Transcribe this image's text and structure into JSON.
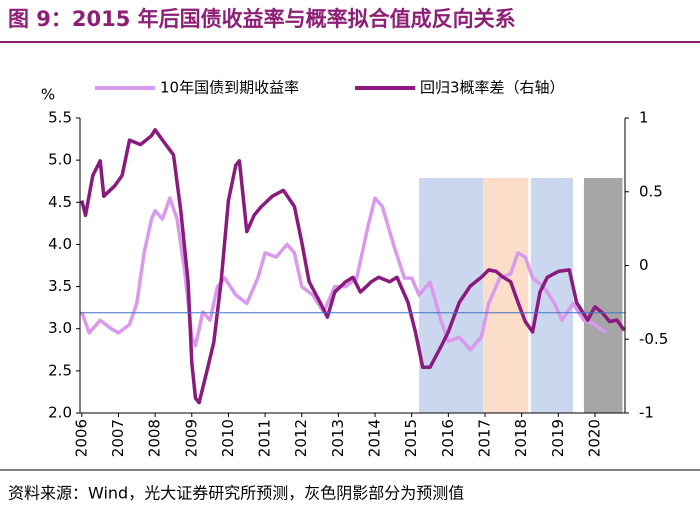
{
  "chart_data": {
    "type": "line",
    "title": "图 9：2015 年后国债收益率与概率拟合值成反向关系",
    "ylabel": "%",
    "source": "资料来源：Wind，光大证券研究所预测，灰色阴影部分为预测值",
    "xlim": [
      2005.95,
      2020.82
    ],
    "xticks": [
      2006,
      2007,
      2008,
      2009,
      2010,
      2011,
      2012,
      2013,
      2014,
      2015,
      2016,
      2017,
      2018,
      2019,
      2020
    ],
    "ylim": [
      2.0,
      5.5
    ],
    "yticks": [
      {
        "value": 2.0,
        "label": "2.0"
      },
      2.5,
      {
        "value": 3.0,
        "label": "3.0"
      },
      3.5,
      {
        "value": 4.0,
        "label": "4.0"
      },
      4.5,
      {
        "value": 5.0,
        "label": "5.0"
      },
      5.5
    ],
    "y2lim": [
      -1,
      1
    ],
    "y2ticks": [
      -1,
      -0.5,
      0,
      0.5,
      1
    ],
    "shaded_regions": [
      {
        "start": 2015.2,
        "end": 2016.95,
        "color": "#CBD7EE"
      },
      {
        "start": 2016.95,
        "end": 2018.18,
        "color": "#FBDDC9"
      },
      {
        "start": 2018.25,
        "end": 2019.4,
        "color": "#CBD7EE"
      },
      {
        "start": 2019.7,
        "end": 2020.75,
        "color": "#A6A6A6"
      }
    ],
    "reference_line": {
      "value": 3.19,
      "color": "#4472C4"
    },
    "series": [
      {
        "name": "10年国债到期收益率",
        "color": "#D999EC",
        "x": [
          2006.0,
          2006.2,
          2006.5,
          2006.8,
          2007.0,
          2007.3,
          2007.5,
          2007.7,
          2007.9,
          2008.0,
          2008.2,
          2008.4,
          2008.6,
          2008.8,
          2009.0,
          2009.1,
          2009.3,
          2009.5,
          2009.7,
          2009.9,
          2010.2,
          2010.5,
          2010.8,
          2011.0,
          2011.3,
          2011.6,
          2011.8,
          2012.0,
          2012.3,
          2012.6,
          2012.9,
          2013.2,
          2013.5,
          2013.8,
          2014.0,
          2014.2,
          2014.5,
          2014.8,
          2015.0,
          2015.2,
          2015.5,
          2015.8,
          2016.0,
          2016.3,
          2016.6,
          2016.9,
          2017.1,
          2017.4,
          2017.7,
          2017.9,
          2018.1,
          2018.3,
          2018.6,
          2018.9,
          2019.1,
          2019.4,
          2019.7,
          2020.0,
          2020.3
        ],
        "values": [
          3.2,
          2.95,
          3.1,
          3.0,
          2.95,
          3.05,
          3.3,
          3.9,
          4.3,
          4.4,
          4.3,
          4.55,
          4.3,
          3.7,
          2.9,
          2.8,
          3.2,
          3.1,
          3.5,
          3.6,
          3.4,
          3.3,
          3.6,
          3.9,
          3.85,
          4.0,
          3.9,
          3.5,
          3.4,
          3.2,
          3.5,
          3.5,
          3.6,
          4.2,
          4.55,
          4.45,
          4.0,
          3.6,
          3.6,
          3.4,
          3.55,
          3.1,
          2.85,
          2.9,
          2.75,
          2.9,
          3.3,
          3.6,
          3.65,
          3.9,
          3.85,
          3.6,
          3.5,
          3.3,
          3.1,
          3.3,
          3.1,
          3.05,
          2.95
        ]
      },
      {
        "name": "回归3概率差（右轴）",
        "color": "#8B1A7E",
        "axis": "y2",
        "x": [
          2006.0,
          2006.1,
          2006.3,
          2006.5,
          2006.6,
          2006.9,
          2007.1,
          2007.3,
          2007.6,
          2007.9,
          2008.0,
          2008.2,
          2008.5,
          2008.7,
          2008.9,
          2009.0,
          2009.1,
          2009.2,
          2009.4,
          2009.6,
          2009.8,
          2010.0,
          2010.2,
          2010.3,
          2010.5,
          2010.7,
          2010.9,
          2011.2,
          2011.5,
          2011.8,
          2012.0,
          2012.2,
          2012.5,
          2012.7,
          2012.9,
          2013.2,
          2013.4,
          2013.6,
          2013.9,
          2014.1,
          2014.4,
          2014.6,
          2014.9,
          2015.1,
          2015.3,
          2015.5,
          2015.8,
          2016.0,
          2016.3,
          2016.6,
          2016.9,
          2017.1,
          2017.3,
          2017.5,
          2017.7,
          2017.9,
          2018.1,
          2018.3,
          2018.5,
          2018.7,
          2019.0,
          2019.3,
          2019.5,
          2019.8,
          2020.0,
          2020.2,
          2020.4,
          2020.6,
          2020.8
        ],
        "values": [
          0.44,
          0.34,
          0.61,
          0.71,
          0.47,
          0.54,
          0.61,
          0.85,
          0.82,
          0.88,
          0.92,
          0.85,
          0.75,
          0.37,
          -0.11,
          -0.66,
          -0.9,
          -0.93,
          -0.73,
          -0.52,
          -0.11,
          0.44,
          0.68,
          0.71,
          0.23,
          0.34,
          0.4,
          0.47,
          0.51,
          0.4,
          0.16,
          -0.11,
          -0.25,
          -0.35,
          -0.18,
          -0.11,
          -0.08,
          -0.18,
          -0.11,
          -0.08,
          -0.11,
          -0.08,
          -0.25,
          -0.45,
          -0.69,
          -0.69,
          -0.55,
          -0.45,
          -0.25,
          -0.14,
          -0.08,
          -0.03,
          -0.04,
          -0.08,
          -0.11,
          -0.25,
          -0.38,
          -0.45,
          -0.18,
          -0.08,
          -0.04,
          -0.03,
          -0.25,
          -0.37,
          -0.28,
          -0.32,
          -0.38,
          -0.37,
          -0.44
        ]
      }
    ]
  }
}
